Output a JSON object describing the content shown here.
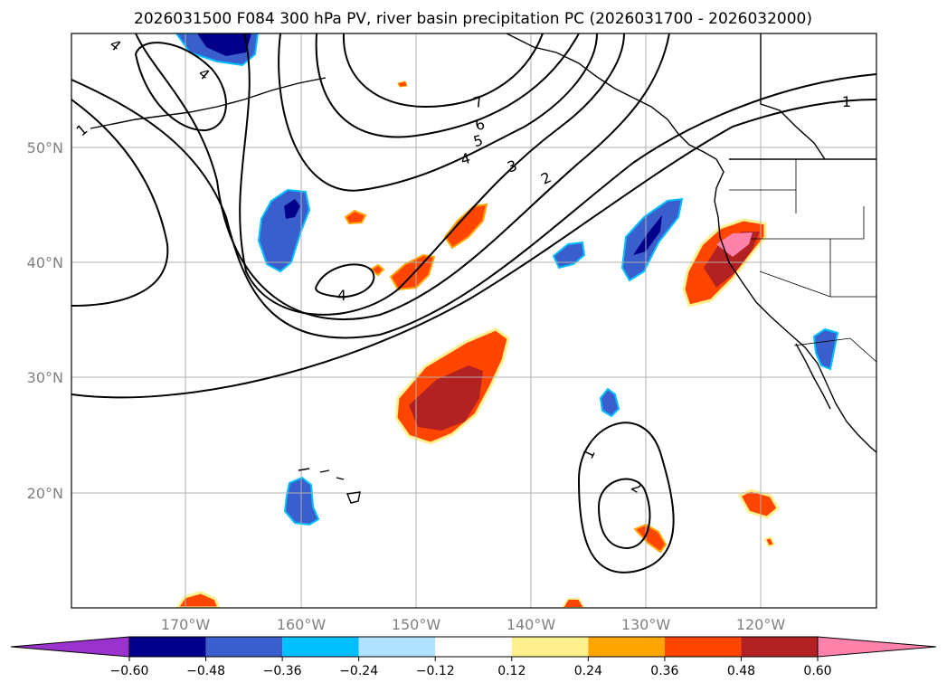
{
  "title": "2026031500 F084 300 hPa PV, river basin precipitation PC (2026031700 - 2026032000)",
  "map": {
    "lat_labels": [
      "50°N",
      "40°N",
      "30°N",
      "20°N"
    ],
    "lon_labels": [
      "170°W",
      "160°W",
      "150°W",
      "140°W",
      "130°W",
      "120°W"
    ],
    "contour_labels": [
      "1",
      "2",
      "3",
      "4",
      "5",
      "6",
      "7",
      "1",
      "2",
      "1",
      "4",
      "4",
      "4"
    ]
  },
  "colorbar": {
    "ticks": [
      "−0.60",
      "−0.48",
      "−0.36",
      "−0.24",
      "−0.12",
      "0.12",
      "0.24",
      "0.36",
      "0.48",
      "0.60"
    ],
    "colors": [
      "#9a32cd",
      "#00008b",
      "#3a5fcd",
      "#00bfff",
      "#b0e2ff",
      "#ffffff",
      "#fff08f",
      "#ffa500",
      "#ff4500",
      "#b22222",
      "#ff82ab"
    ]
  }
}
